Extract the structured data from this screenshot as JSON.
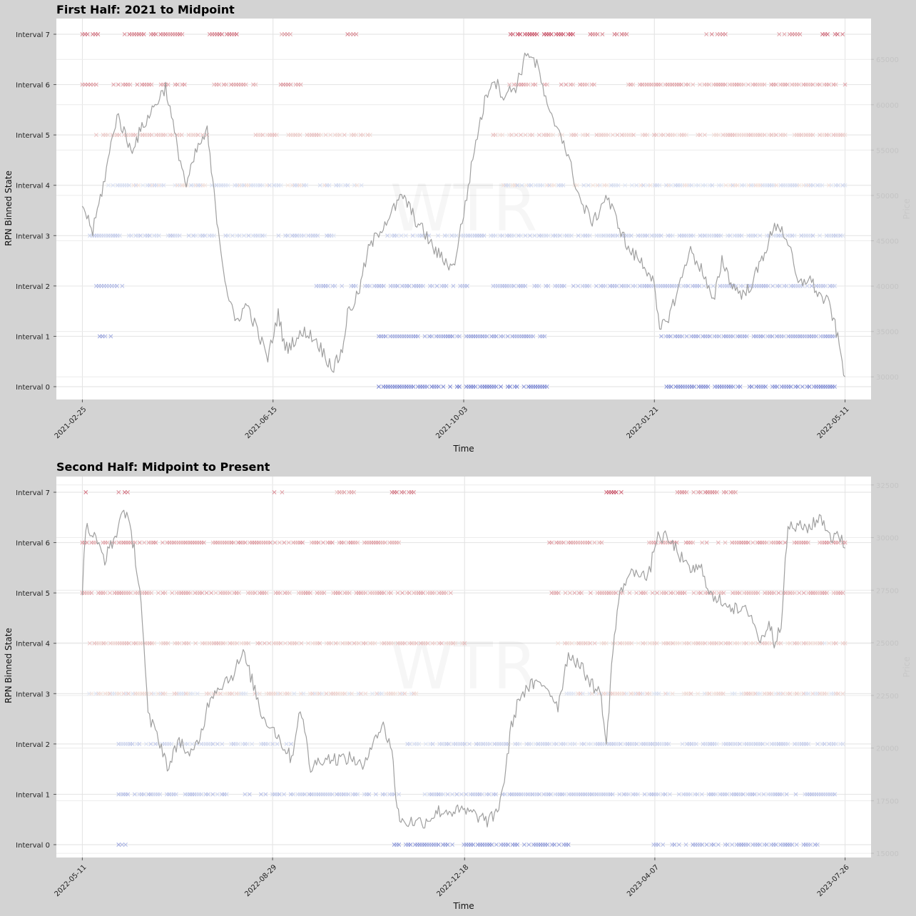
{
  "colors": {
    "figure_background": "#d3d3d3",
    "axes_background": "#ffffff",
    "price_line": "#a0a0a0",
    "grid": "#e2e2e2",
    "low_state": "#3b4cc0",
    "high_state": "#b40426"
  },
  "watermark": "WTR",
  "chart_data": [
    {
      "type": "scatter",
      "title": "First Half: 2021 to Midpoint",
      "xlabel": "Time",
      "ylabel": "RPN Binned State",
      "y2label": "Price",
      "marker": "x",
      "grid": true,
      "states": [
        "Interval 0",
        "Interval 1",
        "Interval 2",
        "Interval 3",
        "Interval 4",
        "Interval 5",
        "Interval 6",
        "Interval 7"
      ],
      "x_ticks": [
        "2021-02-25",
        "2021-06-15",
        "2021-10-03",
        "2022-01-21",
        "2022-05-11"
      ],
      "xlim": [
        "2021-02-10",
        "2022-05-26"
      ],
      "y2lim": [
        27500,
        69500
      ],
      "y2_ticks": [
        30000,
        35000,
        40000,
        45000,
        50000,
        55000,
        60000,
        65000,
        70000
      ],
      "price_series": {
        "name": "Price",
        "x": [
          "2021-02-25",
          "2021-03-03",
          "2021-03-10",
          "2021-03-17",
          "2021-03-25",
          "2021-04-02",
          "2021-04-08",
          "2021-04-14",
          "2021-04-20",
          "2021-04-26",
          "2021-05-02",
          "2021-05-08",
          "2021-05-12",
          "2021-05-16",
          "2021-05-19",
          "2021-05-24",
          "2021-05-31",
          "2021-06-06",
          "2021-06-12",
          "2021-06-18",
          "2021-06-22",
          "2021-06-27",
          "2021-07-04",
          "2021-07-10",
          "2021-07-16",
          "2021-07-20",
          "2021-07-25",
          "2021-07-28",
          "2021-08-03",
          "2021-08-09",
          "2021-08-15",
          "2021-08-22",
          "2021-08-29",
          "2021-09-06",
          "2021-09-10",
          "2021-09-16",
          "2021-09-21",
          "2021-09-27",
          "2021-10-03",
          "2021-10-10",
          "2021-10-16",
          "2021-10-20",
          "2021-10-26",
          "2021-11-02",
          "2021-11-09",
          "2021-11-15",
          "2021-11-21",
          "2021-11-28",
          "2021-12-04",
          "2021-12-10",
          "2021-12-17",
          "2021-12-24",
          "2021-12-31",
          "2022-01-06",
          "2022-01-12",
          "2022-01-20",
          "2022-01-24",
          "2022-01-30",
          "2022-02-06",
          "2022-02-10",
          "2022-02-17",
          "2022-02-24",
          "2022-03-01",
          "2022-03-07",
          "2022-03-14",
          "2022-03-20",
          "2022-03-28",
          "2022-04-02",
          "2022-04-08",
          "2022-04-14",
          "2022-04-20",
          "2022-04-26",
          "2022-05-02",
          "2022-05-06",
          "2022-05-11"
        ],
        "y": [
          49000,
          46000,
          52000,
          59000,
          55000,
          58000,
          60000,
          62000,
          56000,
          51000,
          55000,
          57000,
          50000,
          44000,
          40000,
          36000,
          38000,
          35000,
          32000,
          37000,
          33000,
          34000,
          35000,
          34000,
          32000,
          31000,
          33000,
          37000,
          39000,
          44000,
          46000,
          48000,
          50000,
          47000,
          46000,
          44000,
          43000,
          42000,
          48000,
          56000,
          61000,
          63000,
          61000,
          62000,
          66000,
          64000,
          59000,
          57000,
          53000,
          49000,
          47000,
          50000,
          47000,
          44000,
          43000,
          41000,
          35000,
          37000,
          41000,
          44000,
          42000,
          38000,
          43000,
          40000,
          39000,
          41000,
          45000,
          47000,
          45000,
          40000,
          41000,
          39000,
          38000,
          35000,
          30000
        ]
      },
      "state_points": [
        {
          "state": 7,
          "x_start": "2021-02-25",
          "x_end": "2021-03-06",
          "intensity": 0.55
        },
        {
          "state": 7,
          "x_start": "2021-03-20",
          "x_end": "2021-04-25",
          "intensity": 0.55
        },
        {
          "state": 7,
          "x_start": "2021-05-08",
          "x_end": "2021-05-25",
          "intensity": 0.6
        },
        {
          "state": 7,
          "x_start": "2021-06-20",
          "x_end": "2021-06-25",
          "intensity": 0.4
        },
        {
          "state": 7,
          "x_start": "2021-07-28",
          "x_end": "2021-08-02",
          "intensity": 0.45
        },
        {
          "state": 7,
          "x_start": "2021-10-30",
          "x_end": "2021-12-05",
          "intensity": 0.8
        },
        {
          "state": 7,
          "x_start": "2021-12-15",
          "x_end": "2022-01-05",
          "intensity": 0.55
        },
        {
          "state": 7,
          "x_start": "2022-02-20",
          "x_end": "2022-03-03",
          "intensity": 0.45
        },
        {
          "state": 7,
          "x_start": "2022-04-03",
          "x_end": "2022-04-15",
          "intensity": 0.45
        },
        {
          "state": 7,
          "x_start": "2022-04-28",
          "x_end": "2022-05-11",
          "intensity": 0.6
        },
        {
          "state": 6,
          "x_start": "2021-02-25",
          "x_end": "2021-03-05",
          "intensity": 0.4
        },
        {
          "state": 6,
          "x_start": "2021-03-15",
          "x_end": "2021-04-25",
          "intensity": 0.4
        },
        {
          "state": 6,
          "x_start": "2021-05-12",
          "x_end": "2021-06-05",
          "intensity": 0.35
        },
        {
          "state": 6,
          "x_start": "2021-06-18",
          "x_end": "2021-07-01",
          "intensity": 0.35
        },
        {
          "state": 6,
          "x_start": "2021-10-28",
          "x_end": "2021-12-20",
          "intensity": 0.35
        },
        {
          "state": 6,
          "x_start": "2022-01-06",
          "x_end": "2022-05-11",
          "intensity": 0.3
        },
        {
          "state": 5,
          "x_start": "2021-03-05",
          "x_end": "2021-05-08",
          "intensity": 0.15
        },
        {
          "state": 5,
          "x_start": "2021-06-05",
          "x_end": "2021-08-10",
          "intensity": 0.15
        },
        {
          "state": 5,
          "x_start": "2021-10-20",
          "x_end": "2022-05-11",
          "intensity": 0.15
        },
        {
          "state": 4,
          "x_start": "2021-03-12",
          "x_end": "2021-08-05",
          "intensity": -0.05
        },
        {
          "state": 4,
          "x_start": "2021-10-26",
          "x_end": "2022-05-11",
          "intensity": -0.05
        },
        {
          "state": 3,
          "x_start": "2021-02-28",
          "x_end": "2021-07-20",
          "intensity": -0.15
        },
        {
          "state": 3,
          "x_start": "2021-08-20",
          "x_end": "2022-05-11",
          "intensity": -0.15
        },
        {
          "state": 2,
          "x_start": "2021-03-05",
          "x_end": "2021-03-20",
          "intensity": -0.35
        },
        {
          "state": 2,
          "x_start": "2021-07-10",
          "x_end": "2021-10-05",
          "intensity": -0.35
        },
        {
          "state": 2,
          "x_start": "2021-10-20",
          "x_end": "2022-05-05",
          "intensity": -0.3
        },
        {
          "state": 1,
          "x_start": "2021-03-07",
          "x_end": "2021-03-15",
          "intensity": -0.5
        },
        {
          "state": 1,
          "x_start": "2021-08-15",
          "x_end": "2021-11-20",
          "intensity": -0.5
        },
        {
          "state": 1,
          "x_start": "2022-01-25",
          "x_end": "2022-05-05",
          "intensity": -0.45
        },
        {
          "state": 0,
          "x_start": "2021-08-15",
          "x_end": "2021-11-20",
          "intensity": -0.75
        },
        {
          "state": 0,
          "x_start": "2022-01-28",
          "x_end": "2022-05-05",
          "intensity": -0.7
        }
      ]
    },
    {
      "type": "scatter",
      "title": "Second Half: Midpoint to Present",
      "xlabel": "Time",
      "ylabel": "RPN Binned State",
      "y2label": "Price",
      "marker": "x",
      "grid": true,
      "states": [
        "Interval 0",
        "Interval 1",
        "Interval 2",
        "Interval 3",
        "Interval 4",
        "Interval 5",
        "Interval 6",
        "Interval 7"
      ],
      "x_ticks": [
        "2022-05-11",
        "2022-08-29",
        "2022-12-18",
        "2023-04-07",
        "2023-07-26"
      ],
      "xlim": [
        "2022-04-26",
        "2023-08-10"
      ],
      "y2lim": [
        14800,
        32900
      ],
      "y2_ticks": [
        15000,
        17500,
        20000,
        22500,
        25000,
        27500,
        30000,
        32500
      ],
      "price_series": {
        "name": "Price",
        "x": [
          "2022-05-11",
          "2022-05-13",
          "2022-05-18",
          "2022-05-24",
          "2022-05-30",
          "2022-06-04",
          "2022-06-10",
          "2022-06-14",
          "2022-06-18",
          "2022-06-24",
          "2022-06-30",
          "2022-07-06",
          "2022-07-12",
          "2022-07-18",
          "2022-07-24",
          "2022-07-30",
          "2022-08-06",
          "2022-08-12",
          "2022-08-18",
          "2022-08-23",
          "2022-08-29",
          "2022-09-05",
          "2022-09-09",
          "2022-09-14",
          "2022-09-20",
          "2022-09-26",
          "2022-10-03",
          "2022-10-09",
          "2022-10-15",
          "2022-10-21",
          "2022-10-26",
          "2022-11-01",
          "2022-11-06",
          "2022-11-09",
          "2022-11-12",
          "2022-11-18",
          "2022-11-25",
          "2022-12-03",
          "2022-12-10",
          "2022-12-18",
          "2022-12-25",
          "2023-01-01",
          "2023-01-06",
          "2023-01-10",
          "2023-01-14",
          "2023-01-19",
          "2023-01-26",
          "2023-02-03",
          "2023-02-10",
          "2023-02-16",
          "2023-02-22",
          "2023-03-02",
          "2023-03-07",
          "2023-03-10",
          "2023-03-13",
          "2023-03-17",
          "2023-03-21",
          "2023-03-28",
          "2023-04-03",
          "2023-04-08",
          "2023-04-13",
          "2023-04-19",
          "2023-04-26",
          "2023-05-04",
          "2023-05-11",
          "2023-05-17",
          "2023-05-25",
          "2023-06-01",
          "2023-06-07",
          "2023-06-12",
          "2023-06-15",
          "2023-06-19",
          "2023-06-23",
          "2023-06-30",
          "2023-07-06",
          "2023-07-12",
          "2023-07-18",
          "2023-07-24",
          "2023-07-26"
        ],
        "y": [
          27500,
          30500,
          30000,
          29000,
          30000,
          31500,
          29500,
          27000,
          21500,
          20500,
          19000,
          20500,
          19500,
          20500,
          22500,
          23000,
          23500,
          24500,
          23000,
          21500,
          21000,
          20000,
          19500,
          22000,
          19000,
          19500,
          19500,
          19500,
          19500,
          19000,
          20500,
          21000,
          20000,
          17000,
          16500,
          16500,
          16500,
          17000,
          17000,
          17000,
          16800,
          16500,
          17000,
          18500,
          21000,
          22500,
          23000,
          23000,
          22000,
          24500,
          24000,
          23000,
          22500,
          20000,
          24000,
          27000,
          28000,
          28500,
          28000,
          30000,
          30000,
          29500,
          28500,
          28500,
          27000,
          27000,
          26500,
          26500,
          25000,
          26000,
          25000,
          26000,
          30500,
          30500,
          30500,
          31000,
          30000,
          30000,
          29500
        ]
      },
      "state_points": [
        {
          "state": 7,
          "x_start": "2022-05-11",
          "x_end": "2022-05-13",
          "intensity": 0.55
        },
        {
          "state": 7,
          "x_start": "2022-06-01",
          "x_end": "2022-06-08",
          "intensity": 0.55
        },
        {
          "state": 7,
          "x_start": "2022-08-30",
          "x_end": "2022-09-05",
          "intensity": 0.5
        },
        {
          "state": 7,
          "x_start": "2022-10-01",
          "x_end": "2022-10-15",
          "intensity": 0.3
        },
        {
          "state": 7,
          "x_start": "2022-11-06",
          "x_end": "2022-11-20",
          "intensity": 0.55
        },
        {
          "state": 7,
          "x_start": "2023-03-10",
          "x_end": "2023-03-20",
          "intensity": 0.8
        },
        {
          "state": 7,
          "x_start": "2023-04-20",
          "x_end": "2023-05-25",
          "intensity": 0.45
        },
        {
          "state": 6,
          "x_start": "2022-05-11",
          "x_end": "2022-11-10",
          "intensity": 0.35
        },
        {
          "state": 6,
          "x_start": "2023-02-05",
          "x_end": "2023-03-10",
          "intensity": 0.35
        },
        {
          "state": 6,
          "x_start": "2023-04-01",
          "x_end": "2023-07-26",
          "intensity": 0.35
        },
        {
          "state": 5,
          "x_start": "2022-05-11",
          "x_end": "2022-12-10",
          "intensity": 0.3
        },
        {
          "state": 5,
          "x_start": "2023-02-05",
          "x_end": "2023-07-26",
          "intensity": 0.3
        },
        {
          "state": 4,
          "x_start": "2022-05-14",
          "x_end": "2022-12-18",
          "intensity": 0.15
        },
        {
          "state": 4,
          "x_start": "2023-02-10",
          "x_end": "2023-07-26",
          "intensity": 0.1
        },
        {
          "state": 3,
          "x_start": "2022-05-15",
          "x_end": "2022-11-20",
          "intensity": 0.05
        },
        {
          "state": 3,
          "x_start": "2023-02-15",
          "x_end": "2023-07-26",
          "intensity": 0.05
        },
        {
          "state": 2,
          "x_start": "2022-06-01",
          "x_end": "2022-09-10",
          "intensity": -0.15
        },
        {
          "state": 2,
          "x_start": "2022-11-15",
          "x_end": "2023-07-26",
          "intensity": -0.15
        },
        {
          "state": 1,
          "x_start": "2022-06-01",
          "x_end": "2022-11-10",
          "intensity": -0.25
        },
        {
          "state": 1,
          "x_start": "2022-11-25",
          "x_end": "2023-07-20",
          "intensity": -0.25
        },
        {
          "state": 0,
          "x_start": "2022-06-01",
          "x_end": "2022-06-05",
          "intensity": -0.45
        },
        {
          "state": 0,
          "x_start": "2022-11-06",
          "x_end": "2023-02-16",
          "intensity": -0.6
        },
        {
          "state": 0,
          "x_start": "2023-04-05",
          "x_end": "2023-07-10",
          "intensity": -0.45
        }
      ]
    }
  ]
}
